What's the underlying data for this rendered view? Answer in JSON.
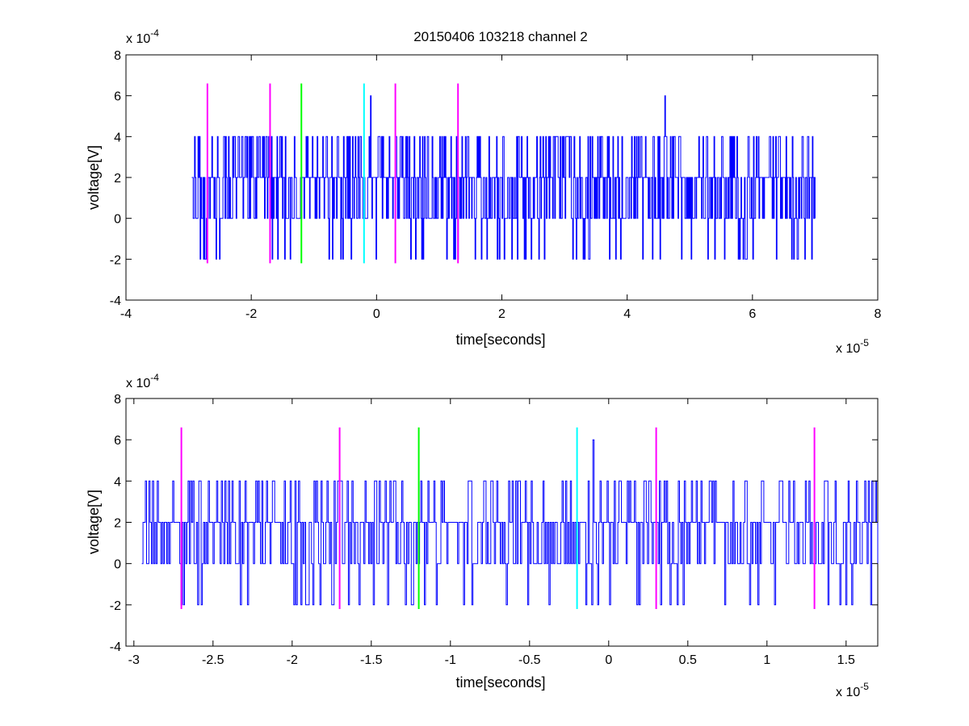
{
  "figure": {
    "title": "20150406 103218 channel 2"
  },
  "chart_data": [
    {
      "type": "line",
      "title": "20150406 103218 channel 2",
      "xlabel": "time[seconds]",
      "ylabel": "voltage[V]",
      "x_multiplier_label": "x 10",
      "x_multiplier_exponent": "-5",
      "y_multiplier_label": "x 10",
      "y_multiplier_exponent": "-4",
      "xlim": [
        -4e-05,
        8e-05
      ],
      "ylim": [
        -0.0004,
        0.0008
      ],
      "x_ticks": [
        -4e-05,
        -2e-05,
        0,
        2e-05,
        4e-05,
        6e-05,
        8e-05
      ],
      "x_tick_labels": [
        "-4",
        "-2",
        "0",
        "2",
        "4",
        "6",
        "8"
      ],
      "y_ticks": [
        -0.0004,
        -0.0002,
        0,
        0.0002,
        0.0004,
        0.0006,
        0.0008
      ],
      "y_tick_labels": [
        "-4",
        "-2",
        "0",
        "2",
        "4",
        "6",
        "8"
      ],
      "grid": false,
      "signal": {
        "color": "#0000ff",
        "x_start": -2.95e-05,
        "x_end": 7e-05,
        "levels": [
          -0.0002,
          0,
          0.0002,
          0.0004,
          0.0006
        ],
        "peak_x": 4.6e-05,
        "peak_y": 0.0006,
        "peak2_x": -1e-06,
        "peak2_y": 0.0006
      },
      "markers": [
        {
          "x": -2.7e-05,
          "color": "#ff00ff",
          "y_min": -0.00022,
          "y_max": 0.00066
        },
        {
          "x": -1.7e-05,
          "color": "#ff00ff",
          "y_min": -0.00022,
          "y_max": 0.00066
        },
        {
          "x": -1.2e-05,
          "color": "#00ff00",
          "y_min": -0.00022,
          "y_max": 0.00066
        },
        {
          "x": -2e-06,
          "color": "#00ffff",
          "y_min": -0.00022,
          "y_max": 0.00066
        },
        {
          "x": 3e-06,
          "color": "#ff00ff",
          "y_min": -0.00022,
          "y_max": 0.00066
        },
        {
          "x": 1.3e-05,
          "color": "#ff00ff",
          "y_min": -0.00022,
          "y_max": 0.00066
        }
      ]
    },
    {
      "type": "line",
      "title": "",
      "xlabel": "time[seconds]",
      "ylabel": "voltage[V]",
      "x_multiplier_label": "x 10",
      "x_multiplier_exponent": "-5",
      "y_multiplier_label": "x 10",
      "y_multiplier_exponent": "-4",
      "xlim": [
        -3.05e-05,
        1.7e-05
      ],
      "ylim": [
        -0.0004,
        0.0008
      ],
      "x_ticks": [
        -3e-05,
        -2.5e-05,
        -2e-05,
        -1.5e-05,
        -1e-05,
        -5e-06,
        0,
        5e-06,
        1e-05,
        1.5e-05
      ],
      "x_tick_labels": [
        "-3",
        "-2.5",
        "-2",
        "-1.5",
        "-1",
        "-0.5",
        "0",
        "0.5",
        "1",
        "1.5"
      ],
      "y_ticks": [
        -0.0004,
        -0.0002,
        0,
        0.0002,
        0.0004,
        0.0006,
        0.0008
      ],
      "y_tick_labels": [
        "-4",
        "-2",
        "0",
        "2",
        "4",
        "6",
        "8"
      ],
      "grid": false,
      "signal": {
        "color": "#0000ff",
        "x_start": -2.95e-05,
        "x_end": 1.7e-05,
        "levels": [
          -0.0002,
          0,
          0.0002,
          0.0004,
          0.0006
        ],
        "peak_x": -1e-06,
        "peak_y": 0.0006,
        "peak2_x": null,
        "peak2_y": null
      },
      "markers": [
        {
          "x": -2.7e-05,
          "color": "#ff00ff",
          "y_min": -0.00022,
          "y_max": 0.00066
        },
        {
          "x": -1.7e-05,
          "color": "#ff00ff",
          "y_min": -0.00022,
          "y_max": 0.00066
        },
        {
          "x": -1.2e-05,
          "color": "#00ff00",
          "y_min": -0.00022,
          "y_max": 0.00066
        },
        {
          "x": -2e-06,
          "color": "#00ffff",
          "y_min": -0.00022,
          "y_max": 0.00066
        },
        {
          "x": 3e-06,
          "color": "#ff00ff",
          "y_min": -0.00022,
          "y_max": 0.00066
        },
        {
          "x": 1.3e-05,
          "color": "#ff00ff",
          "y_min": -0.00022,
          "y_max": 0.00066
        }
      ]
    }
  ]
}
